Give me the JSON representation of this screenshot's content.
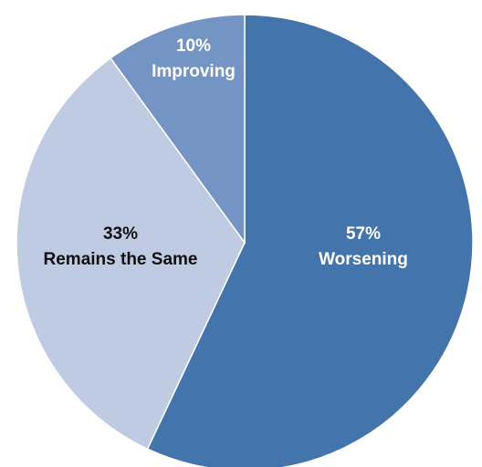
{
  "chart_data": {
    "type": "pie",
    "title": "",
    "start": "12 o'clock",
    "direction": "clockwise",
    "slices": [
      {
        "label": "Worsening",
        "value": 57,
        "percent_text": "57%",
        "color": "#4374ac",
        "text_color": "#ffffff"
      },
      {
        "label": "Remains the Same",
        "value": 33,
        "percent_text": "33%",
        "color": "#bfcbe3",
        "text_color": "#111111"
      },
      {
        "label": "Improving",
        "value": 10,
        "percent_text": "10%",
        "color": "#7494c4",
        "text_color": "#ffffff"
      }
    ],
    "slice_border_color": "#ffffff",
    "legend": "none"
  }
}
